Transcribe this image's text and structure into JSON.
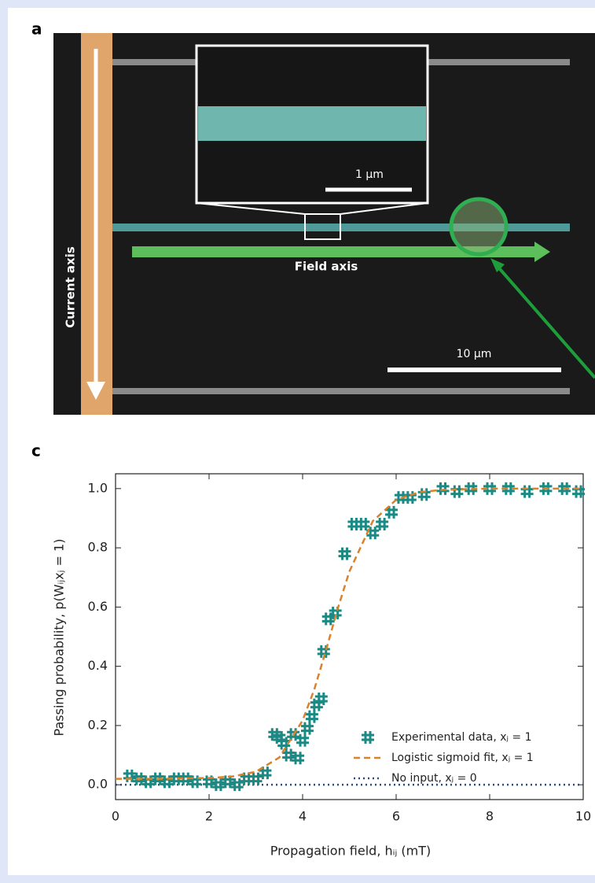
{
  "panel_a": {
    "label": "a",
    "current_axis": "Current axis",
    "field_axis": "Field axis",
    "inset_scale": "1 µm",
    "scale": "10 µm"
  },
  "chart_data": {
    "type": "scatter",
    "panel_label": "c",
    "xlabel": "Propagation field, hᵢⱼ (mT)",
    "ylabel": "Passing probability, p(Wᵢⱼxⱼ = 1)",
    "xlim": [
      0,
      10
    ],
    "ylim": [
      -0.05,
      1.05
    ],
    "xticks": [
      0,
      2,
      4,
      6,
      8,
      10
    ],
    "yticks": [
      {
        "value": 0,
        "label": "0.0"
      },
      {
        "value": 0.2,
        "label": "0.2"
      },
      {
        "value": 0.4,
        "label": "0.4"
      },
      {
        "value": 0.6,
        "label": "0.6"
      },
      {
        "value": 0.8,
        "label": "0.8"
      },
      {
        "value": 1,
        "label": "1.0"
      }
    ],
    "series": [
      {
        "name": "Experimental data, xⱼ = 1",
        "color": "#1b8a84",
        "kind": "markers",
        "x": [
          0.3,
          0.5,
          0.7,
          0.9,
          1.1,
          1.3,
          1.5,
          1.7,
          2.0,
          2.2,
          2.4,
          2.6,
          2.8,
          3.0,
          3.2,
          3.4,
          3.5,
          3.6,
          3.7,
          3.8,
          3.9,
          4.0,
          4.1,
          4.2,
          4.3,
          4.4,
          4.45,
          4.55,
          4.7,
          4.9,
          5.1,
          5.3,
          5.5,
          5.7,
          5.9,
          6.1,
          6.3,
          6.6,
          7.0,
          7.3,
          7.6,
          8.0,
          8.4,
          8.8,
          9.2,
          9.6,
          9.9
        ],
        "values": [
          0.03,
          0.02,
          0.01,
          0.02,
          0.01,
          0.02,
          0.02,
          0.01,
          0.01,
          0.0,
          0.01,
          0.0,
          0.02,
          0.02,
          0.04,
          0.17,
          0.16,
          0.14,
          0.1,
          0.17,
          0.09,
          0.15,
          0.19,
          0.23,
          0.27,
          0.29,
          0.45,
          0.56,
          0.58,
          0.78,
          0.88,
          0.88,
          0.85,
          0.88,
          0.92,
          0.97,
          0.97,
          0.98,
          1.0,
          0.99,
          1.0,
          1.0,
          1.0,
          0.99,
          1.0,
          1.0,
          0.99
        ]
      },
      {
        "name": "Logistic sigmoid fit, xⱼ = 1",
        "color": "#d9822b",
        "kind": "dashed",
        "x": [
          0,
          1,
          2,
          2.5,
          3,
          3.5,
          4,
          4.25,
          4.5,
          4.75,
          5,
          5.5,
          6,
          6.5,
          7,
          8,
          9,
          10
        ],
        "values": [
          0.02,
          0.02,
          0.023,
          0.028,
          0.044,
          0.092,
          0.217,
          0.322,
          0.454,
          0.594,
          0.72,
          0.89,
          0.962,
          0.988,
          0.996,
          1.0,
          1.0,
          1.0
        ]
      },
      {
        "name": "No input, xⱼ = 0",
        "color": "#2e4a7a",
        "kind": "dotted",
        "x": [
          0,
          10
        ],
        "values": [
          0,
          0
        ]
      }
    ]
  }
}
